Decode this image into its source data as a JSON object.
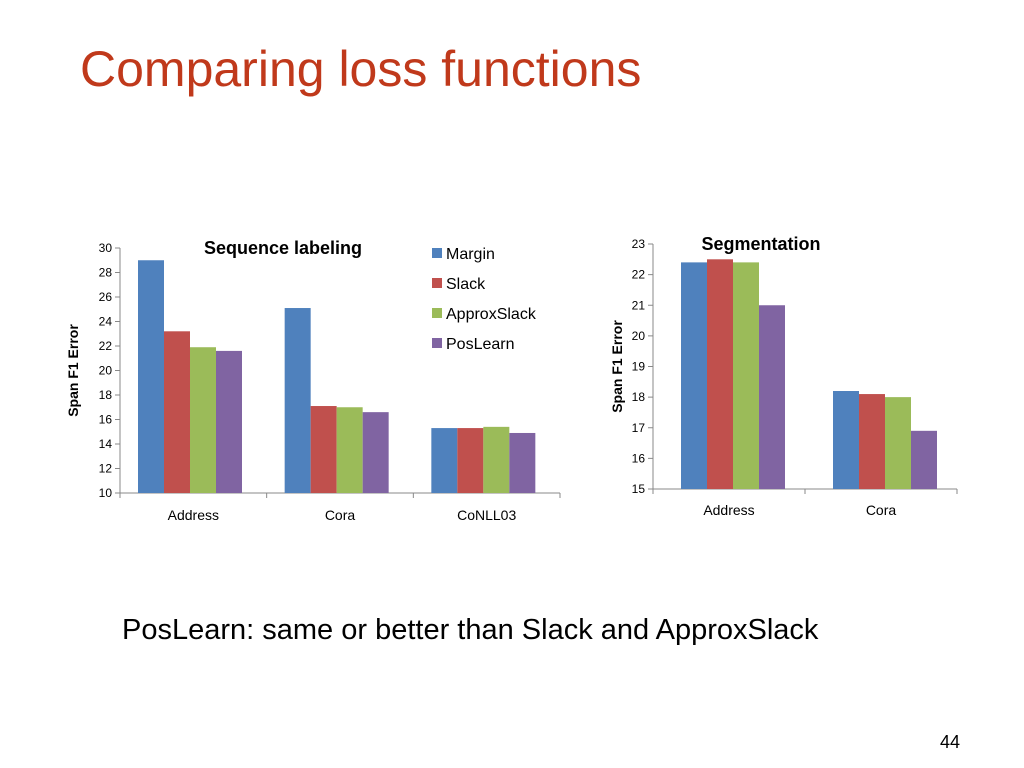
{
  "slide": {
    "title": "Comparing loss functions",
    "caption": "PosLearn: same or better than Slack and ApproxSlack",
    "page_number": "44"
  },
  "colors": {
    "title": "#c0391b",
    "Margin": "#4f81bd",
    "Slack": "#c0504d",
    "ApproxSlack": "#9bbb59",
    "PosLearn": "#8064a2"
  },
  "chart_data": [
    {
      "type": "bar",
      "title": "Sequence labeling",
      "ylabel": "Span F1 Error",
      "xlabel": "",
      "ylim": [
        10,
        30
      ],
      "yticks": [
        10,
        12,
        14,
        16,
        18,
        20,
        22,
        24,
        26,
        28,
        30
      ],
      "categories": [
        "Address",
        "Cora",
        "CoNLL03"
      ],
      "legend": "right",
      "grid": false,
      "series": [
        {
          "name": "Margin",
          "values": [
            29.0,
            25.1,
            15.3
          ]
        },
        {
          "name": "Slack",
          "values": [
            23.2,
            17.1,
            15.3
          ]
        },
        {
          "name": "ApproxSlack",
          "values": [
            21.9,
            17.0,
            15.4
          ]
        },
        {
          "name": "PosLearn",
          "values": [
            21.6,
            16.6,
            14.9
          ]
        }
      ]
    },
    {
      "type": "bar",
      "title": "Segmentation",
      "ylabel": "Span F1 Error",
      "xlabel": "",
      "ylim": [
        15,
        23
      ],
      "yticks": [
        15,
        16,
        17,
        18,
        19,
        20,
        21,
        22,
        23
      ],
      "categories": [
        "Address",
        "Cora"
      ],
      "grid": false,
      "series": [
        {
          "name": "Margin",
          "values": [
            22.4,
            18.2
          ]
        },
        {
          "name": "Slack",
          "values": [
            22.5,
            18.1
          ]
        },
        {
          "name": "ApproxSlack",
          "values": [
            22.4,
            18.0
          ]
        },
        {
          "name": "PosLearn",
          "values": [
            21.0,
            16.9
          ]
        }
      ]
    }
  ]
}
